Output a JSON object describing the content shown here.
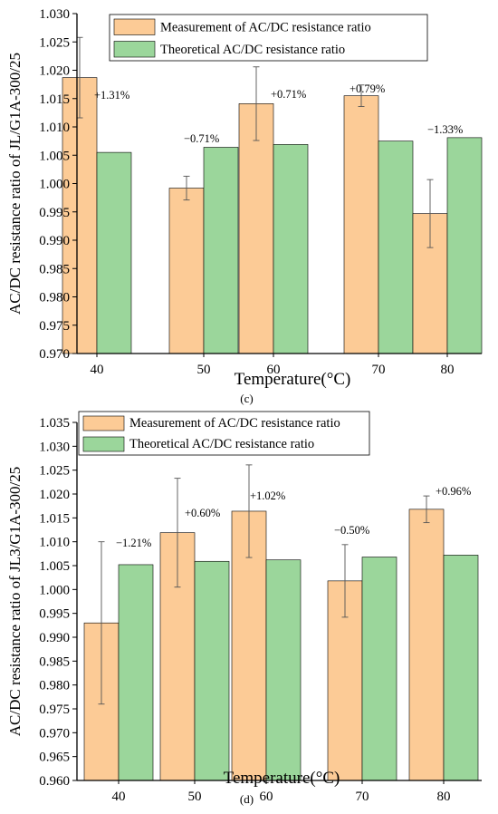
{
  "colors": {
    "measurement": "#FCCB96",
    "theoretical": "#9BD69B",
    "bar_stroke": "#000000",
    "error_bar": "#555555"
  },
  "chart_data": [
    {
      "panel": "(c)",
      "type": "bar",
      "categories": [
        "40",
        "50",
        "60",
        "70",
        "80"
      ],
      "series": [
        {
          "name": "Measurement of AC/DC resistance ratio",
          "values": [
            1.0187,
            0.9992,
            1.0141,
            1.0155,
            0.9947
          ],
          "error": [
            0.0071,
            0.0021,
            0.0065,
            0.0019,
            0.006
          ]
        },
        {
          "name": "Theoretical AC/DC resistance ratio",
          "values": [
            1.0055,
            1.0064,
            1.0069,
            1.0075,
            1.0081
          ]
        }
      ],
      "annotations": [
        "+1.31%",
        "−0.71%",
        "+0.71%",
        "+0.79%",
        "−1.33%"
      ],
      "xlabel": "Temperature(°C)",
      "ylabel": "AC/DC resistance ratio of JL/G1A-300/25",
      "ylim": [
        0.97,
        1.03
      ],
      "yticks": [
        "0.970",
        "0.975",
        "0.980",
        "0.985",
        "0.990",
        "0.995",
        "1.000",
        "1.005",
        "1.010",
        "1.015",
        "1.020",
        "1.025",
        "1.030"
      ],
      "grid": false,
      "legend": "top-center"
    },
    {
      "panel": "(d)",
      "type": "bar",
      "categories": [
        "40",
        "50",
        "60",
        "70",
        "80"
      ],
      "series": [
        {
          "name": "Measurement of AC/DC resistance ratio",
          "values": [
            0.993,
            1.0119,
            1.0164,
            1.0018,
            1.0168
          ],
          "error": [
            0.017,
            0.0114,
            0.0097,
            0.0076,
            0.0028
          ]
        },
        {
          "name": "Theoretical AC/DC resistance ratio",
          "values": [
            1.0052,
            1.0059,
            1.0062,
            1.0068,
            1.0072
          ]
        }
      ],
      "annotations": [
        "−1.21%",
        "+0.60%",
        "+1.02%",
        "−0.50%",
        "+0.96%"
      ],
      "xlabel": "Temperature(°C)",
      "ylabel": "AC/DC resistance ratio of JL3/G1A-300/25",
      "ylim": [
        0.96,
        1.035
      ],
      "yticks": [
        "0.960",
        "0.965",
        "0.970",
        "0.975",
        "0.980",
        "0.985",
        "0.990",
        "0.995",
        "1.000",
        "1.005",
        "1.010",
        "1.015",
        "1.020",
        "1.025",
        "1.030",
        "1.035"
      ],
      "grid": false,
      "legend": "top-center"
    }
  ]
}
